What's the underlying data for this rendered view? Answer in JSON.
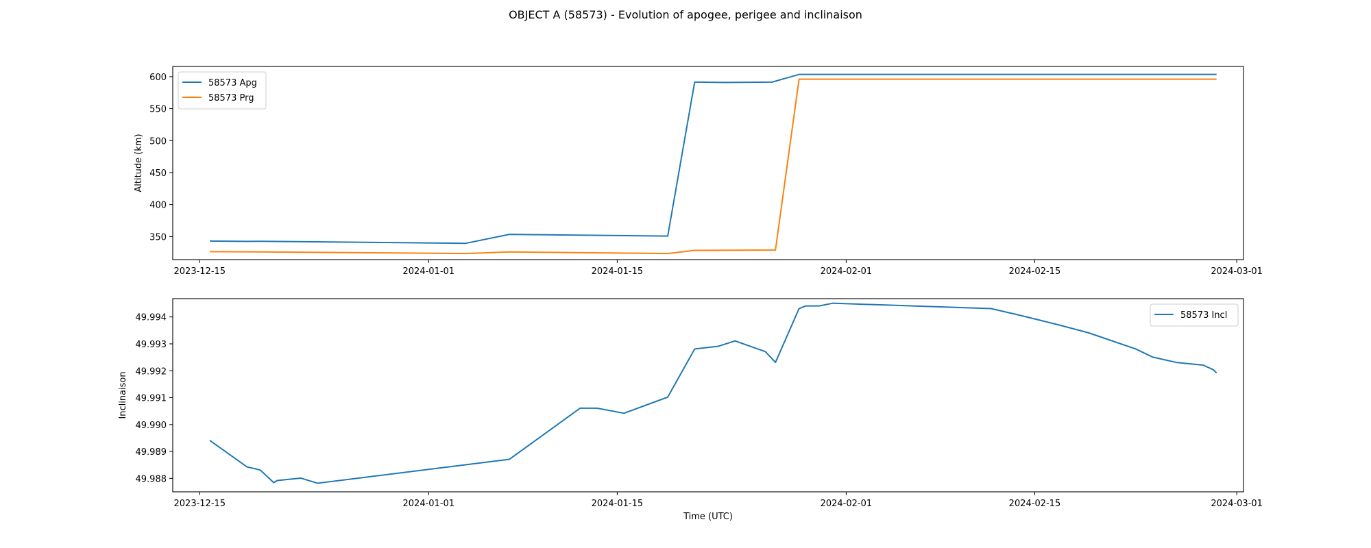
{
  "figure": {
    "title": "OBJECT A (58573) - Evolution of apogee, perigee and inclinaison"
  },
  "chart_data": [
    {
      "type": "line",
      "title": "",
      "xlabel": "",
      "ylabel": "Altitude (km)",
      "x_type": "date",
      "xlim": [
        "2023-12-13T00:00",
        "2024-03-01T12:00"
      ],
      "ylim": [
        314,
        616
      ],
      "x_ticks": [
        "2023-12-15",
        "2024-01-01",
        "2024-01-15",
        "2024-02-01",
        "2024-02-15",
        "2024-03-01"
      ],
      "y_ticks": [
        350,
        400,
        450,
        500,
        550,
        600
      ],
      "grid": false,
      "legend": "upper left",
      "series": [
        {
          "name": "58573 Apg",
          "color": "#1f77b4",
          "points": [
            [
              "2023-12-15T18:00",
              343
            ],
            [
              "2023-12-18T12:00",
              342.5
            ],
            [
              "2023-12-19T12:00",
              342.6
            ],
            [
              "2024-01-03T18:00",
              339.5
            ],
            [
              "2024-01-07T00:00",
              353.5
            ],
            [
              "2024-01-18T18:00",
              350.8
            ],
            [
              "2024-01-20T18:00",
              591.5
            ],
            [
              "2024-01-23T00:00",
              591
            ],
            [
              "2024-01-26T12:00",
              591.5
            ],
            [
              "2024-01-28T12:00",
              603.5
            ],
            [
              "2024-02-28T12:00",
              603.5
            ]
          ]
        },
        {
          "name": "58573 Prg",
          "color": "#ff7f0e",
          "points": [
            [
              "2023-12-15T18:00",
              326.5
            ],
            [
              "2023-12-19T12:00",
              326
            ],
            [
              "2024-01-03T18:00",
              323.5
            ],
            [
              "2024-01-07T00:00",
              326
            ],
            [
              "2024-01-18T18:00",
              323.5
            ],
            [
              "2024-01-20T18:00",
              328.5
            ],
            [
              "2024-01-26T18:00",
              329
            ],
            [
              "2024-01-28T12:00",
              596
            ],
            [
              "2024-02-28T12:00",
              596
            ]
          ]
        }
      ]
    },
    {
      "type": "line",
      "title": "",
      "xlabel": "Time (UTC)",
      "ylabel": "Inclinaison",
      "x_type": "date",
      "xlim": [
        "2023-12-13T00:00",
        "2024-03-01T12:00"
      ],
      "ylim": [
        49.9875,
        49.99468
      ],
      "x_ticks": [
        "2023-12-15",
        "2024-01-01",
        "2024-01-15",
        "2024-02-01",
        "2024-02-15",
        "2024-03-01"
      ],
      "y_ticks": [
        49.988,
        49.989,
        49.99,
        49.991,
        49.992,
        49.993,
        49.994
      ],
      "y_tick_labels": [
        "49.988",
        "49.989",
        "49.990",
        "49.991",
        "49.992",
        "49.993",
        "49.994"
      ],
      "grid": false,
      "legend": "upper right",
      "series": [
        {
          "name": "58573 Incl",
          "color": "#1f77b4",
          "points": [
            [
              "2023-12-15T18:00",
              49.98941
            ],
            [
              "2023-12-18T12:00",
              49.98843
            ],
            [
              "2023-12-19T12:00",
              49.98831
            ],
            [
              "2023-12-20T12:00",
              49.98784
            ],
            [
              "2023-12-20T18:00",
              49.98792
            ],
            [
              "2023-12-22T12:00",
              49.98801
            ],
            [
              "2023-12-23T18:00",
              49.98782
            ],
            [
              "2024-01-07T00:00",
              49.98871
            ],
            [
              "2024-01-12T06:00",
              49.99061
            ],
            [
              "2024-01-13T12:00",
              49.99061
            ],
            [
              "2024-01-15T12:00",
              49.99042
            ],
            [
              "2024-01-18T18:00",
              49.99102
            ],
            [
              "2024-01-20T18:00",
              49.99281
            ],
            [
              "2024-01-22T12:00",
              49.99291
            ],
            [
              "2024-01-23T18:00",
              49.99311
            ],
            [
              "2024-01-26T00:00",
              49.99271
            ],
            [
              "2024-01-26T18:00",
              49.99231
            ],
            [
              "2024-01-28T12:00",
              49.99431
            ],
            [
              "2024-01-29T00:00",
              49.99441
            ],
            [
              "2024-01-30T00:00",
              49.99441
            ],
            [
              "2024-01-31T00:00",
              49.99451
            ],
            [
              "2024-02-11T18:00",
              49.99431
            ],
            [
              "2024-02-13T12:00",
              49.99411
            ],
            [
              "2024-02-16T18:00",
              49.99371
            ],
            [
              "2024-02-19T00:00",
              49.99341
            ],
            [
              "2024-02-22T12:00",
              49.99281
            ],
            [
              "2024-02-23T18:00",
              49.99251
            ],
            [
              "2024-02-25T12:00",
              49.99231
            ],
            [
              "2024-02-27T12:00",
              49.99221
            ],
            [
              "2024-02-28T06:00",
              49.99204
            ],
            [
              "2024-02-28T12:00",
              49.99192
            ]
          ]
        }
      ]
    }
  ]
}
